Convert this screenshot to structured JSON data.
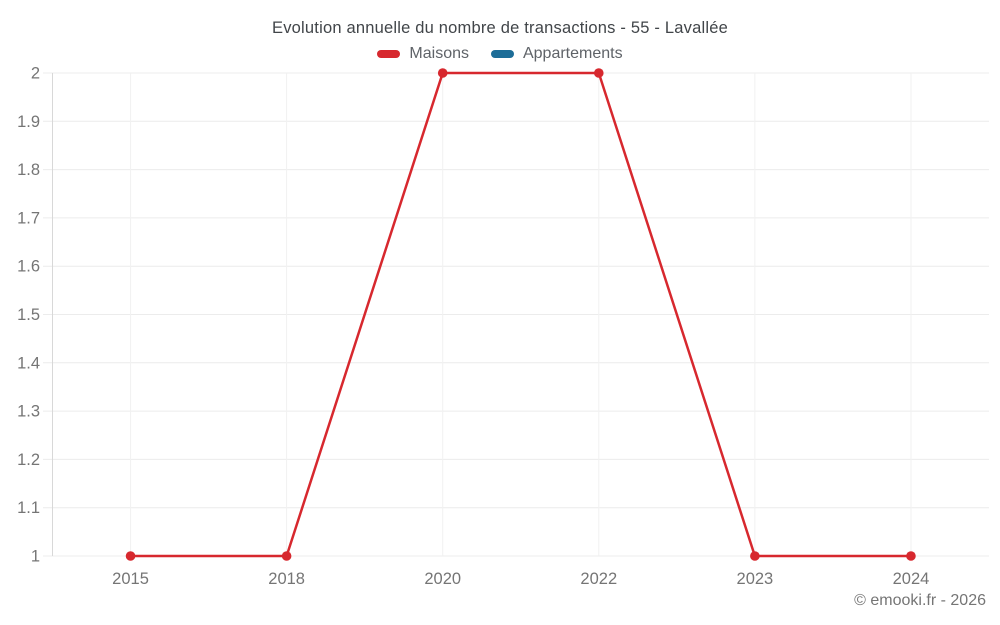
{
  "title": "Evolution annuelle du nombre de transactions - 55 - Lavallée",
  "legend": {
    "items": [
      {
        "label": "Maisons",
        "color": "#d7282e"
      },
      {
        "label": "Appartements",
        "color": "#1d6d98"
      }
    ]
  },
  "footer": "© emooki.fr - 2026",
  "chart_data": {
    "type": "line",
    "title": "Evolution annuelle du nombre de transactions - 55 - Lavallée",
    "categories": [
      "2015",
      "2018",
      "2020",
      "2022",
      "2023",
      "2024"
    ],
    "series": [
      {
        "name": "Maisons",
        "color": "#d7282e",
        "values": [
          1,
          1,
          2,
          2,
          1,
          1
        ]
      },
      {
        "name": "Appartements",
        "color": "#1d6d98",
        "values": []
      }
    ],
    "xlabel": "",
    "ylabel": "",
    "ylim": [
      1,
      2
    ],
    "ytick_labels": [
      "2",
      "1.9",
      "1.8",
      "1.7",
      "1.6",
      "1.5",
      "1.4",
      "1.3",
      "1.2",
      "1.1",
      "1"
    ],
    "grid": true,
    "legend_position": "top",
    "colors": {
      "grid_horizontal": "#ececec",
      "grid_vertical": "#f1f1f1",
      "axis": "#d8d8d8",
      "tick_text": "#757575"
    }
  }
}
